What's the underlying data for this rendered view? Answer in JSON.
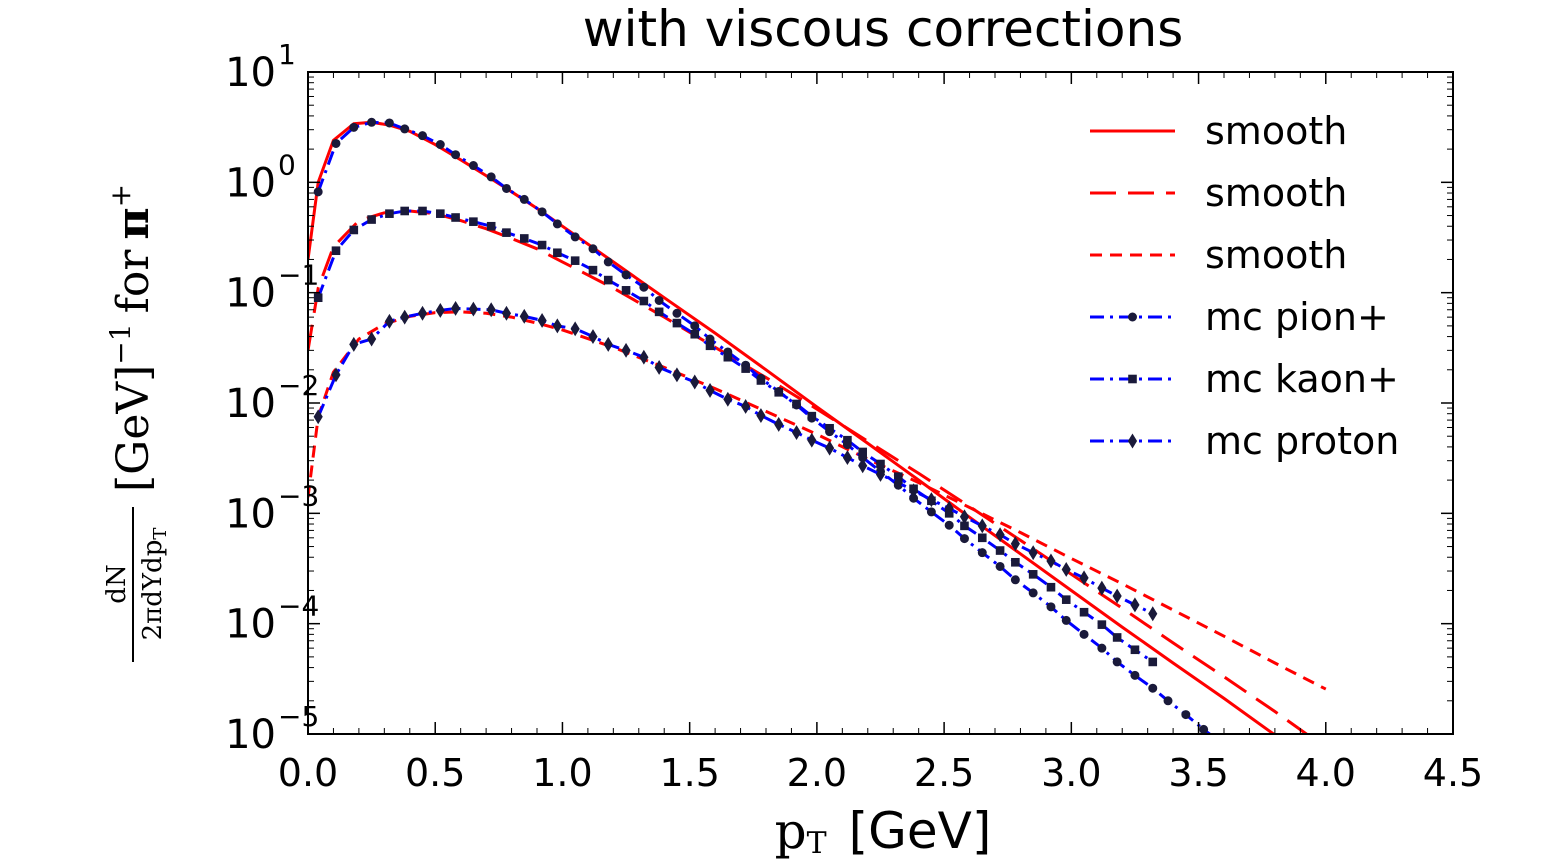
{
  "chart_data": {
    "type": "line",
    "title": "with viscous corrections",
    "xlabel": {
      "p": "p",
      "sub": "T",
      "unit": "[GeV]"
    },
    "ylabel": {
      "frac_num": "dN",
      "frac_den_a": "2πdYdp",
      "frac_den_sub": "T",
      "bracket": "[GeV]",
      "exp": "−1",
      "for_text": "for",
      "particle": "π",
      "charge": "+"
    },
    "xlim": [
      0.0,
      4.5
    ],
    "ylim_log10": [
      -5,
      1
    ],
    "y_scale": "log",
    "x_ticks": [
      "0.0",
      "0.5",
      "1.0",
      "1.5",
      "2.0",
      "2.5",
      "3.0",
      "3.5",
      "4.0",
      "4.5"
    ],
    "y_ticks": [
      {
        "base": "10",
        "exp": "−5"
      },
      {
        "base": "10",
        "exp": "−4"
      },
      {
        "base": "10",
        "exp": "−3"
      },
      {
        "base": "10",
        "exp": "−2"
      },
      {
        "base": "10",
        "exp": "−1"
      },
      {
        "base": "10",
        "exp": "0"
      },
      {
        "base": "10",
        "exp": "1"
      }
    ],
    "legend_position": "top-right",
    "colors": {
      "smooth": "#ff0000",
      "mc": "#0000ff",
      "marker": "#1a1a3a",
      "axis": "#000000"
    },
    "series": [
      {
        "name": "smooth",
        "kind": "smooth",
        "dash": "solid",
        "x": [
          0.0,
          0.04,
          0.1,
          0.18,
          0.25,
          0.32,
          0.4,
          0.5,
          0.6,
          0.7,
          0.8,
          0.9,
          1.0,
          1.2,
          1.4,
          1.6,
          1.8,
          2.0,
          2.2,
          2.4,
          2.6,
          2.8,
          3.0,
          3.2,
          3.4,
          3.6,
          3.8,
          4.0
        ],
        "y": [
          0.2,
          1.0,
          2.4,
          3.4,
          3.5,
          3.3,
          2.9,
          2.2,
          1.6,
          1.15,
          0.82,
          0.58,
          0.4,
          0.19,
          0.09,
          0.043,
          0.02,
          0.0092,
          0.0043,
          0.002,
          0.00092,
          0.00043,
          0.0002,
          9.3e-05,
          4.4e-05,
          2.1e-05,
          9.8e-06,
          4.5e-06
        ]
      },
      {
        "name": "smooth",
        "kind": "smooth",
        "dash": "long",
        "x": [
          0.0,
          0.04,
          0.1,
          0.2,
          0.3,
          0.4,
          0.5,
          0.6,
          0.7,
          0.8,
          0.9,
          1.0,
          1.2,
          1.4,
          1.6,
          1.8,
          2.0,
          2.2,
          2.4,
          2.6,
          2.8,
          3.0,
          3.2,
          3.4,
          3.6,
          3.8,
          4.0
        ],
        "y": [
          0.03,
          0.11,
          0.26,
          0.45,
          0.53,
          0.55,
          0.52,
          0.45,
          0.38,
          0.31,
          0.25,
          0.19,
          0.11,
          0.06,
          0.032,
          0.017,
          0.0088,
          0.0045,
          0.0023,
          0.00115,
          0.00057,
          0.00028,
          0.000138,
          6.7e-05,
          3.3e-05,
          1.6e-05,
          7.5e-06
        ]
      },
      {
        "name": "smooth",
        "kind": "smooth",
        "dash": "short",
        "x": [
          0.0,
          0.04,
          0.1,
          0.2,
          0.3,
          0.4,
          0.5,
          0.6,
          0.7,
          0.8,
          0.9,
          1.0,
          1.2,
          1.4,
          1.6,
          1.8,
          2.0,
          2.2,
          2.4,
          2.6,
          2.8,
          3.0,
          3.2,
          3.4,
          3.6,
          3.8,
          4.0
        ],
        "y": [
          0.0014,
          0.0075,
          0.019,
          0.038,
          0.052,
          0.061,
          0.066,
          0.067,
          0.065,
          0.06,
          0.053,
          0.046,
          0.032,
          0.021,
          0.0135,
          0.0084,
          0.0052,
          0.0031,
          0.0019,
          0.00113,
          0.00067,
          0.00039,
          0.00023,
          0.000133,
          7.7e-05,
          4.4e-05,
          2.55e-05
        ]
      },
      {
        "name": "mc pion+",
        "kind": "mc",
        "marker": "circle",
        "x": [
          0.04,
          0.11,
          0.18,
          0.25,
          0.32,
          0.38,
          0.45,
          0.52,
          0.58,
          0.65,
          0.72,
          0.78,
          0.85,
          0.92,
          0.98,
          1.05,
          1.12,
          1.18,
          1.25,
          1.32,
          1.38,
          1.45,
          1.52,
          1.58,
          1.65,
          1.72,
          1.78,
          1.85,
          1.92,
          1.98,
          2.05,
          2.12,
          2.18,
          2.25,
          2.32,
          2.38,
          2.45,
          2.52,
          2.58,
          2.65,
          2.72,
          2.78,
          2.85,
          2.92,
          2.98,
          3.05,
          3.12,
          3.18,
          3.25,
          3.32,
          3.38,
          3.45,
          3.52,
          3.58,
          3.65,
          3.72
        ],
        "y": [
          0.82,
          2.25,
          3.15,
          3.5,
          3.45,
          3.05,
          2.65,
          2.2,
          1.78,
          1.42,
          1.12,
          0.88,
          0.7,
          0.54,
          0.42,
          0.32,
          0.25,
          0.19,
          0.145,
          0.112,
          0.085,
          0.065,
          0.05,
          0.038,
          0.029,
          0.022,
          0.0167,
          0.0127,
          0.0096,
          0.0073,
          0.0055,
          0.0042,
          0.0032,
          0.0024,
          0.0018,
          0.00137,
          0.00103,
          0.00078,
          0.00059,
          0.00044,
          0.00033,
          0.00025,
          0.00019,
          0.000142,
          0.000107,
          8e-05,
          6e-05,
          4.5e-05,
          3.4e-05,
          2.6e-05,
          2e-05,
          1.5e-05,
          1.1e-05,
          8.6e-06,
          6.5e-06,
          4.9e-06
        ]
      },
      {
        "name": "mc kaon+",
        "kind": "mc",
        "marker": "square",
        "x": [
          0.04,
          0.11,
          0.18,
          0.25,
          0.32,
          0.38,
          0.45,
          0.52,
          0.58,
          0.65,
          0.72,
          0.78,
          0.85,
          0.92,
          0.98,
          1.05,
          1.12,
          1.18,
          1.25,
          1.32,
          1.38,
          1.45,
          1.52,
          1.58,
          1.65,
          1.72,
          1.78,
          1.85,
          1.92,
          1.98,
          2.05,
          2.12,
          2.18,
          2.25,
          2.32,
          2.38,
          2.45,
          2.52,
          2.58,
          2.65,
          2.72,
          2.78,
          2.85,
          2.92,
          2.98,
          3.05,
          3.12,
          3.18,
          3.25,
          3.32
        ],
        "y": [
          0.09,
          0.24,
          0.37,
          0.46,
          0.52,
          0.55,
          0.55,
          0.52,
          0.48,
          0.44,
          0.4,
          0.35,
          0.31,
          0.27,
          0.23,
          0.195,
          0.16,
          0.13,
          0.105,
          0.084,
          0.067,
          0.053,
          0.042,
          0.033,
          0.026,
          0.0205,
          0.016,
          0.0125,
          0.0098,
          0.0076,
          0.0059,
          0.0046,
          0.0036,
          0.0028,
          0.00215,
          0.00167,
          0.0013,
          0.001,
          0.00077,
          0.0006,
          0.00046,
          0.00036,
          0.00028,
          0.000214,
          0.000165,
          0.000127,
          9.8e-05,
          7.5e-05,
          5.8e-05,
          4.5e-05
        ]
      },
      {
        "name": "mc proton",
        "kind": "mc",
        "marker": "diamond",
        "x": [
          0.04,
          0.11,
          0.18,
          0.25,
          0.32,
          0.38,
          0.45,
          0.52,
          0.58,
          0.65,
          0.72,
          0.78,
          0.85,
          0.92,
          0.98,
          1.05,
          1.12,
          1.18,
          1.25,
          1.32,
          1.38,
          1.45,
          1.52,
          1.58,
          1.65,
          1.72,
          1.78,
          1.85,
          1.92,
          1.98,
          2.05,
          2.12,
          2.18,
          2.25,
          2.32,
          2.38,
          2.45,
          2.52,
          2.58,
          2.65,
          2.72,
          2.78,
          2.85,
          2.92,
          2.98,
          3.05,
          3.12,
          3.18,
          3.25,
          3.32
        ],
        "y": [
          0.0075,
          0.018,
          0.034,
          0.038,
          0.055,
          0.06,
          0.065,
          0.069,
          0.072,
          0.071,
          0.07,
          0.065,
          0.061,
          0.056,
          0.05,
          0.047,
          0.04,
          0.034,
          0.03,
          0.026,
          0.021,
          0.018,
          0.0155,
          0.013,
          0.0108,
          0.0093,
          0.0077,
          0.0064,
          0.0054,
          0.0046,
          0.0039,
          0.0032,
          0.0027,
          0.00225,
          0.0019,
          0.0016,
          0.00133,
          0.00111,
          0.00093,
          0.00077,
          0.00064,
          0.00053,
          0.00044,
          0.00037,
          0.00031,
          0.00026,
          0.00021,
          0.000178,
          0.000148,
          0.000123
        ]
      }
    ]
  }
}
